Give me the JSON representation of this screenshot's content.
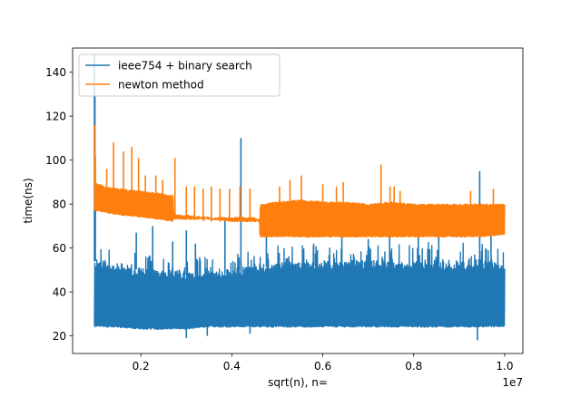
{
  "chart_data": {
    "type": "line",
    "title": "",
    "xlabel": "sqrt(n), n=",
    "ylabel": "time(ns)",
    "x_offset_text": "1e7",
    "xlim": [
      0.05,
      1.04
    ],
    "ylim": [
      12,
      151
    ],
    "x_ticks": [
      {
        "value": 0.2,
        "label": "0.2"
      },
      {
        "value": 0.4,
        "label": "0.4"
      },
      {
        "value": 0.6,
        "label": "0.6"
      },
      {
        "value": 0.8,
        "label": "0.8"
      },
      {
        "value": 1.0,
        "label": "1.0"
      }
    ],
    "y_ticks": [
      {
        "value": 20,
        "label": "20"
      },
      {
        "value": 40,
        "label": "40"
      },
      {
        "value": 60,
        "label": "60"
      },
      {
        "value": 80,
        "label": "80"
      },
      {
        "value": 100,
        "label": "100"
      },
      {
        "value": 120,
        "label": "120"
      },
      {
        "value": 140,
        "label": "140"
      }
    ],
    "grid": false,
    "legend_position": "top-left",
    "series": [
      {
        "name": "ieee754 + binary search",
        "color": "#1f77b4",
        "x_range": [
          0.098,
          1.0
        ],
        "band": {
          "x": [
            0.098,
            0.14,
            0.2,
            0.25,
            0.3,
            0.35,
            0.4,
            0.45,
            0.5,
            0.55,
            0.6,
            0.65,
            0.7,
            0.75,
            0.8,
            0.85,
            0.9,
            0.95,
            1.0
          ],
          "low": [
            24,
            24,
            23,
            23,
            23,
            24,
            24,
            24,
            24,
            24,
            24,
            24,
            24,
            24,
            24,
            24,
            24,
            24,
            24
          ],
          "typical_high": [
            56,
            54,
            52,
            50,
            50,
            50,
            51,
            53,
            54,
            54,
            54,
            55,
            55,
            55,
            55,
            55,
            55,
            55,
            55
          ],
          "upper": [
            65,
            63,
            60,
            58,
            58,
            58,
            59,
            60,
            62,
            62,
            62,
            62,
            62,
            62,
            63,
            63,
            63,
            63,
            62
          ]
        },
        "spikes": [
          {
            "x": 0.098,
            "y": 148
          },
          {
            "x": 0.099,
            "y": 131
          },
          {
            "x": 0.1,
            "y": 78
          },
          {
            "x": 0.19,
            "y": 67
          },
          {
            "x": 0.226,
            "y": 70
          },
          {
            "x": 0.27,
            "y": 63
          },
          {
            "x": 0.3,
            "y": 68
          },
          {
            "x": 0.32,
            "y": 62
          },
          {
            "x": 0.385,
            "y": 74
          },
          {
            "x": 0.42,
            "y": 110
          },
          {
            "x": 0.476,
            "y": 71
          },
          {
            "x": 0.58,
            "y": 62
          },
          {
            "x": 0.642,
            "y": 70
          },
          {
            "x": 0.7,
            "y": 64
          },
          {
            "x": 0.747,
            "y": 70
          },
          {
            "x": 0.81,
            "y": 66
          },
          {
            "x": 0.855,
            "y": 72
          },
          {
            "x": 0.945,
            "y": 95
          },
          {
            "x": 0.97,
            "y": 70
          }
        ],
        "dips": [
          {
            "x": 0.3,
            "y": 19
          },
          {
            "x": 0.346,
            "y": 20
          },
          {
            "x": 0.44,
            "y": 21
          },
          {
            "x": 0.94,
            "y": 18
          }
        ]
      },
      {
        "name": "newton method",
        "color": "#ff7f0e",
        "x_range": [
          0.098,
          1.0
        ],
        "band": {
          "x": [
            0.098,
            0.12,
            0.15,
            0.2,
            0.24,
            0.27,
            0.272,
            0.3,
            0.35,
            0.4,
            0.45,
            0.46,
            0.462,
            0.5,
            0.55,
            0.6,
            0.65,
            0.7,
            0.75,
            0.8,
            0.85,
            0.9,
            0.95,
            1.0
          ],
          "low": [
            77,
            76,
            75,
            74,
            73,
            72,
            73,
            73,
            73,
            72,
            72,
            72,
            65,
            65,
            65,
            65,
            65,
            65,
            65,
            65,
            65,
            65,
            65,
            66
          ],
          "high": [
            90,
            88,
            87,
            86,
            85,
            84,
            75,
            75,
            74,
            74,
            74,
            73,
            80,
            81,
            82,
            81,
            81,
            80,
            81,
            80,
            80,
            80,
            80,
            80
          ]
        },
        "spikes": [
          {
            "x": 0.098,
            "y": 116
          },
          {
            "x": 0.1,
            "y": 102
          },
          {
            "x": 0.125,
            "y": 96
          },
          {
            "x": 0.14,
            "y": 108
          },
          {
            "x": 0.162,
            "y": 104
          },
          {
            "x": 0.18,
            "y": 106
          },
          {
            "x": 0.195,
            "y": 101
          },
          {
            "x": 0.21,
            "y": 93
          },
          {
            "x": 0.233,
            "y": 93
          },
          {
            "x": 0.248,
            "y": 91
          },
          {
            "x": 0.275,
            "y": 101
          },
          {
            "x": 0.3,
            "y": 88
          },
          {
            "x": 0.318,
            "y": 88
          },
          {
            "x": 0.337,
            "y": 87
          },
          {
            "x": 0.355,
            "y": 88
          },
          {
            "x": 0.374,
            "y": 87
          },
          {
            "x": 0.395,
            "y": 87
          },
          {
            "x": 0.418,
            "y": 88
          },
          {
            "x": 0.44,
            "y": 87
          },
          {
            "x": 0.505,
            "y": 88
          },
          {
            "x": 0.528,
            "y": 91
          },
          {
            "x": 0.553,
            "y": 93
          },
          {
            "x": 0.6,
            "y": 89
          },
          {
            "x": 0.63,
            "y": 88
          },
          {
            "x": 0.645,
            "y": 90
          },
          {
            "x": 0.728,
            "y": 98
          },
          {
            "x": 0.748,
            "y": 88
          },
          {
            "x": 0.757,
            "y": 88
          },
          {
            "x": 0.77,
            "y": 86
          },
          {
            "x": 0.925,
            "y": 86
          },
          {
            "x": 0.975,
            "y": 87
          }
        ],
        "dips": []
      }
    ]
  }
}
